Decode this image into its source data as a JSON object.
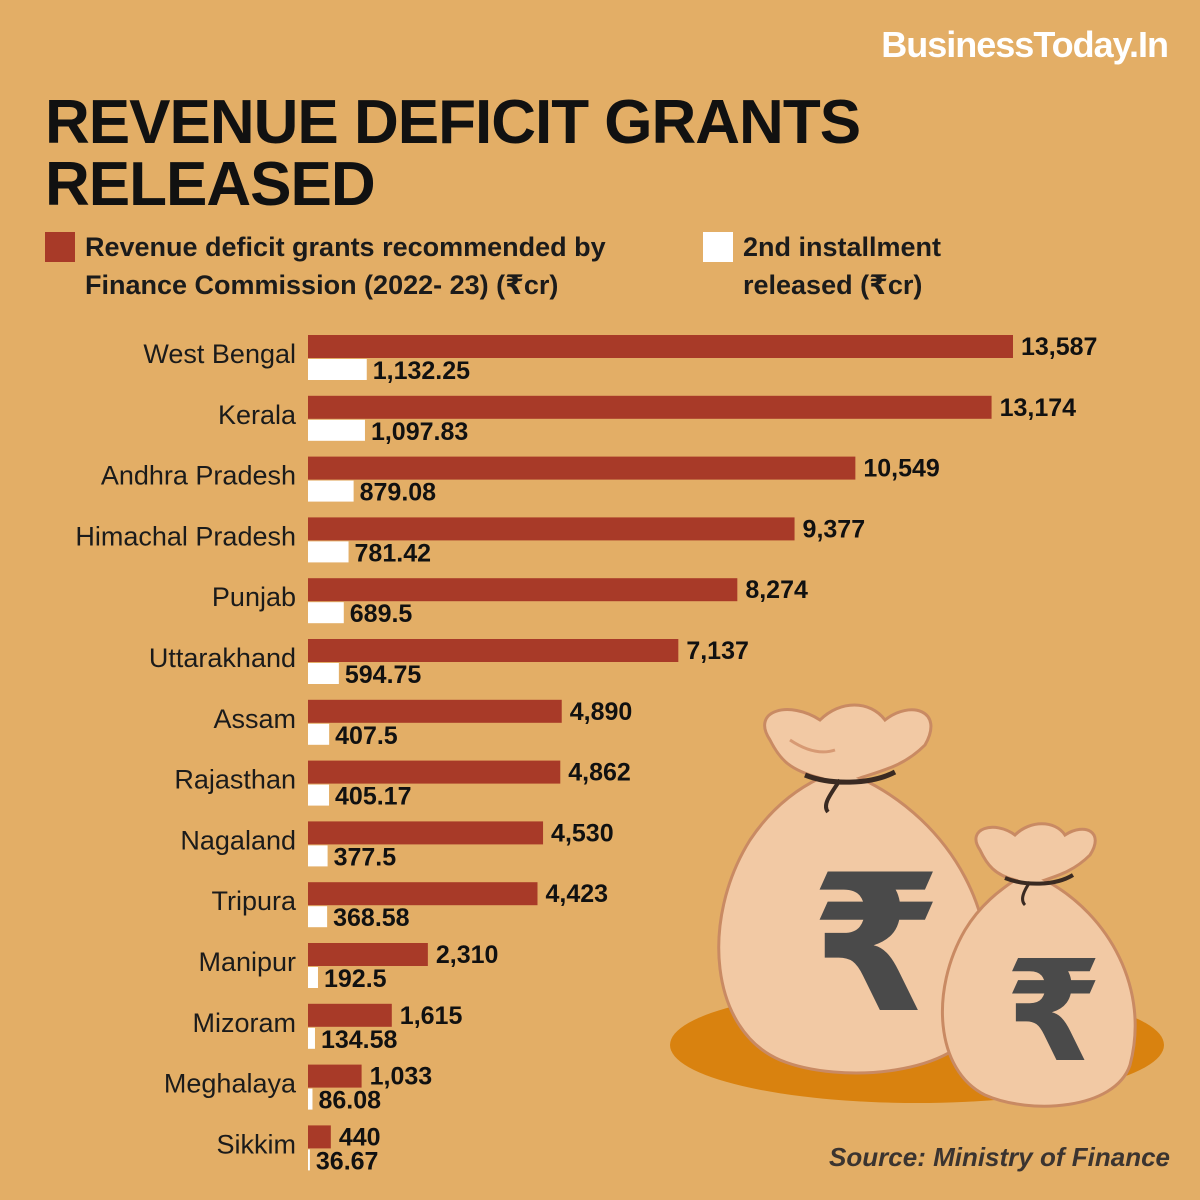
{
  "brand": "BusinessToday.In",
  "source": "Source: Ministry of Finance",
  "colors": {
    "background": "#E3AE66",
    "recommended": "#A83A28",
    "released": "#FFFFFF",
    "plate": "#D9820F",
    "bag": "#F2C9A4",
    "rupee_symbol": "#4a4a4a"
  },
  "chart_data": {
    "type": "bar",
    "orientation": "horizontal",
    "title": "REVENUE DEFICIT GRANTS RELEASED",
    "xlabel": "",
    "ylabel": "",
    "legend_position": "top",
    "categories": [
      "West Bengal",
      "Kerala",
      "Andhra Pradesh",
      "Himachal Pradesh",
      "Punjab",
      "Uttarakhand",
      "Assam",
      "Rajasthan",
      "Nagaland",
      "Tripura",
      "Manipur",
      "Mizoram",
      "Meghalaya",
      "Sikkim"
    ],
    "series": [
      {
        "name": "Revenue deficit grants recommended by Finance Commission (2022- 23) (₹cr)",
        "color": "#A83A28",
        "values": [
          13587,
          13174,
          10549,
          9377,
          8274,
          7137,
          4890,
          4862,
          4530,
          4423,
          2310,
          1615,
          1033,
          440
        ],
        "labels": [
          "13,587",
          "13,174",
          "10,549",
          "9,377",
          "8,274",
          "7,137",
          "4,890",
          "4,862",
          "4,530",
          "4,423",
          "2,310",
          "1,615",
          "1,033",
          "440"
        ]
      },
      {
        "name": "2nd installment released (₹cr)",
        "color": "#FFFFFF",
        "values": [
          1132.25,
          1097.83,
          879.08,
          781.42,
          689.5,
          594.75,
          407.5,
          405.17,
          377.5,
          368.58,
          192.5,
          134.58,
          86.08,
          36.67
        ],
        "labels": [
          "1,132.25",
          "1,097.83",
          "879.08",
          "781.42",
          "689.5",
          "594.75",
          "407.5",
          "405.17",
          "377.5",
          "368.58",
          "192.5",
          "134.58",
          "86.08",
          "36.67"
        ]
      }
    ],
    "xlim": [
      0,
      13587
    ],
    "grid": false
  }
}
